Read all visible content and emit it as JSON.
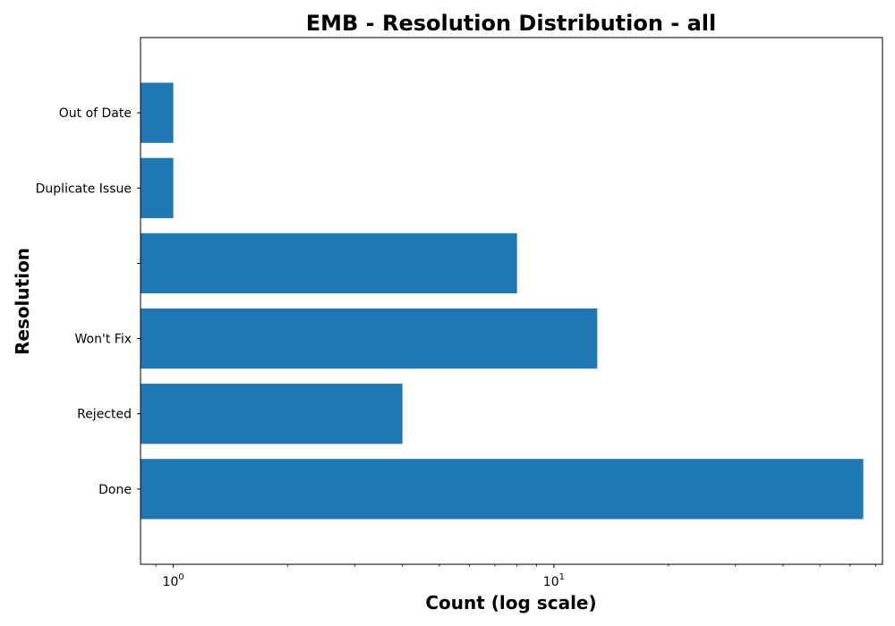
{
  "chart_data": {
    "type": "bar",
    "orientation": "horizontal",
    "title": "EMB - Resolution Distribution - all",
    "xlabel": "Count (log scale)",
    "ylabel": "Resolution",
    "x_scale": "log",
    "xlim": [
      0.82,
      73
    ],
    "x_ticks": [
      {
        "value": 1,
        "base": "10",
        "exp": "0"
      },
      {
        "value": 10,
        "base": "10",
        "exp": "1"
      }
    ],
    "categories": [
      "Done",
      "Rejected",
      "Won't Fix",
      "",
      "Duplicate Issue",
      "Out of Date"
    ],
    "values": [
      65,
      4,
      13,
      8,
      1,
      1
    ],
    "bar_color": "#1f77b4",
    "grid": false,
    "legend": "none"
  }
}
